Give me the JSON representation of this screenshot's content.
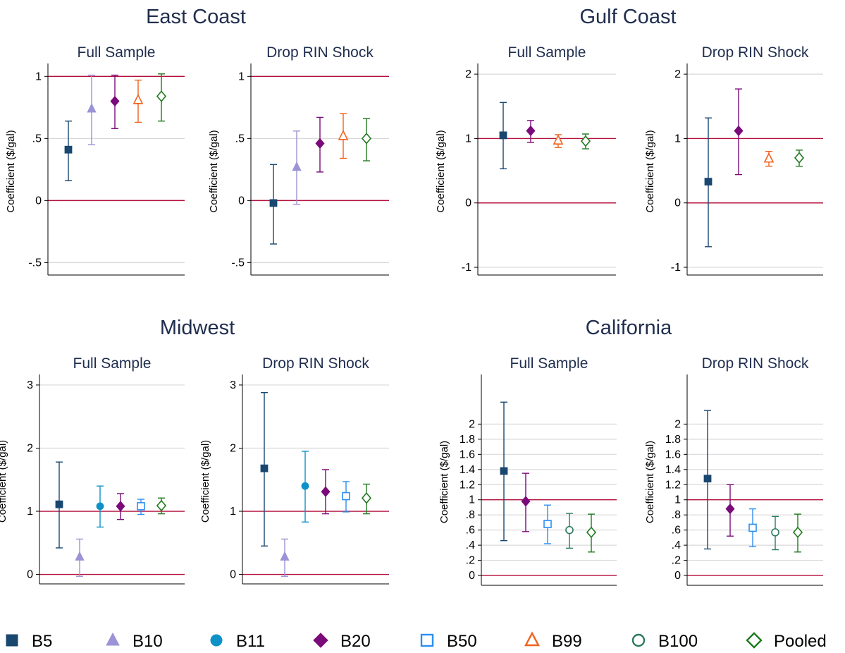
{
  "figure": {
    "y_axis_label": "Coefficient ($/gal)",
    "reference_color": "#b5113e",
    "grid_color": "#d9d9d9",
    "title_color": "#1f2d4e",
    "series_styles": {
      "B5": {
        "color": "#1a476f",
        "marker": "square-filled"
      },
      "B10": {
        "color": "#9b93d6",
        "marker": "triangle-filled"
      },
      "B11": {
        "color": "#0e91c7",
        "marker": "circle-filled"
      },
      "B20": {
        "color": "#7b0a7a",
        "marker": "diamond-filled"
      },
      "B50": {
        "color": "#2b8ff1",
        "marker": "square-hollow"
      },
      "B99": {
        "color": "#f0611d",
        "marker": "triangle-hollow"
      },
      "B100": {
        "color": "#2c7a5f",
        "marker": "circle-hollow"
      },
      "Pooled": {
        "color": "#1f7a1f",
        "marker": "diamond-hollow"
      }
    },
    "legend": [
      "B5",
      "B10",
      "B11",
      "B20",
      "B50",
      "B99",
      "B100",
      "Pooled"
    ]
  },
  "regions": [
    {
      "title": "East Coast"
    },
    {
      "title": "Gulf Coast"
    },
    {
      "title": "Midwest"
    },
    {
      "title": "California"
    }
  ],
  "chart_data": [
    {
      "type": "scatter",
      "region": "East Coast",
      "title": "Full Sample",
      "ylabel": "Coefficient ($/gal)",
      "ylim": [
        -0.6,
        1.07
      ],
      "yticks": [
        -0.5,
        0,
        0.5,
        1
      ],
      "ytick_labels": [
        "-.5",
        "0",
        ".5",
        "1"
      ],
      "reference_lines": [
        0,
        1
      ],
      "series": [
        {
          "name": "B5",
          "estimate": 0.41,
          "ci": [
            0.16,
            0.64
          ]
        },
        {
          "name": "B10",
          "estimate": 0.74,
          "ci": [
            0.45,
            1.01
          ]
        },
        {
          "name": "B20",
          "estimate": 0.8,
          "ci": [
            0.58,
            1.01
          ]
        },
        {
          "name": "B99",
          "estimate": 0.81,
          "ci": [
            0.63,
            0.97
          ]
        },
        {
          "name": "Pooled",
          "estimate": 0.84,
          "ci": [
            0.64,
            1.02
          ]
        }
      ]
    },
    {
      "type": "scatter",
      "region": "East Coast",
      "title": "Drop RIN Shock",
      "ylabel": "Coefficient ($/gal)",
      "ylim": [
        -0.6,
        1.07
      ],
      "yticks": [
        -0.5,
        0,
        0.5,
        1
      ],
      "ytick_labels": [
        "-.5",
        "0",
        ".5",
        "1"
      ],
      "reference_lines": [
        0,
        1
      ],
      "series": [
        {
          "name": "B5",
          "estimate": -0.02,
          "ci": [
            -0.35,
            0.29
          ]
        },
        {
          "name": "B10",
          "estimate": 0.27,
          "ci": [
            -0.03,
            0.56
          ]
        },
        {
          "name": "B20",
          "estimate": 0.46,
          "ci": [
            0.23,
            0.67
          ]
        },
        {
          "name": "B99",
          "estimate": 0.52,
          "ci": [
            0.34,
            0.7
          ]
        },
        {
          "name": "Pooled",
          "estimate": 0.5,
          "ci": [
            0.32,
            0.66
          ]
        }
      ]
    },
    {
      "type": "scatter",
      "region": "Gulf Coast",
      "title": "Full Sample",
      "ylabel": "Coefficient ($/gal)",
      "ylim": [
        -1.12,
        2.1
      ],
      "yticks": [
        -1,
        0,
        1,
        2
      ],
      "ytick_labels": [
        "-1",
        "0",
        "1",
        "2"
      ],
      "reference_lines": [
        0,
        1
      ],
      "series": [
        {
          "name": "B5",
          "estimate": 1.05,
          "ci": [
            0.53,
            1.56
          ]
        },
        {
          "name": "B20",
          "estimate": 1.12,
          "ci": [
            0.94,
            1.28
          ]
        },
        {
          "name": "B99",
          "estimate": 0.97,
          "ci": [
            0.86,
            1.06
          ]
        },
        {
          "name": "Pooled",
          "estimate": 0.96,
          "ci": [
            0.84,
            1.07
          ]
        }
      ]
    },
    {
      "type": "scatter",
      "region": "Gulf Coast",
      "title": "Drop RIN Shock",
      "ylabel": "Coefficient ($/gal)",
      "ylim": [
        -1.12,
        2.1
      ],
      "yticks": [
        -1,
        0,
        1,
        2
      ],
      "ytick_labels": [
        "-1",
        "0",
        "1",
        "2"
      ],
      "reference_lines": [
        0,
        1
      ],
      "series": [
        {
          "name": "B5",
          "estimate": 0.33,
          "ci": [
            -0.68,
            1.32
          ]
        },
        {
          "name": "B20",
          "estimate": 1.12,
          "ci": [
            0.44,
            1.77
          ]
        },
        {
          "name": "B99",
          "estimate": 0.69,
          "ci": [
            0.57,
            0.8
          ]
        },
        {
          "name": "Pooled",
          "estimate": 0.7,
          "ci": [
            0.57,
            0.82
          ]
        }
      ]
    },
    {
      "type": "scatter",
      "region": "Midwest",
      "title": "Full Sample",
      "ylabel": "Coefficient ($/gal)",
      "ylim": [
        -0.15,
        3.1
      ],
      "yticks": [
        0,
        1,
        2,
        3
      ],
      "ytick_labels": [
        "0",
        "1",
        "2",
        "3"
      ],
      "reference_lines": [
        0,
        1
      ],
      "series": [
        {
          "name": "B5",
          "estimate": 1.11,
          "ci": [
            0.42,
            1.78
          ]
        },
        {
          "name": "B10",
          "estimate": 0.28,
          "ci": [
            -0.03,
            0.56
          ]
        },
        {
          "name": "B11",
          "estimate": 1.08,
          "ci": [
            0.75,
            1.4
          ]
        },
        {
          "name": "B20",
          "estimate": 1.08,
          "ci": [
            0.87,
            1.28
          ]
        },
        {
          "name": "B50",
          "estimate": 1.08,
          "ci": [
            0.95,
            1.19
          ]
        },
        {
          "name": "Pooled",
          "estimate": 1.09,
          "ci": [
            0.96,
            1.21
          ]
        }
      ]
    },
    {
      "type": "scatter",
      "region": "Midwest",
      "title": "Drop RIN Shock",
      "ylabel": "Coefficient ($/gal)",
      "ylim": [
        -0.15,
        3.1
      ],
      "yticks": [
        0,
        1,
        2,
        3
      ],
      "ytick_labels": [
        "0",
        "1",
        "2",
        "3"
      ],
      "reference_lines": [
        0,
        1
      ],
      "series": [
        {
          "name": "B5",
          "estimate": 1.68,
          "ci": [
            0.45,
            2.88
          ]
        },
        {
          "name": "B10",
          "estimate": 0.28,
          "ci": [
            -0.03,
            0.56
          ]
        },
        {
          "name": "B11",
          "estimate": 1.4,
          "ci": [
            0.83,
            1.95
          ]
        },
        {
          "name": "B20",
          "estimate": 1.31,
          "ci": [
            0.96,
            1.66
          ]
        },
        {
          "name": "B50",
          "estimate": 1.24,
          "ci": [
            0.99,
            1.47
          ]
        },
        {
          "name": "Pooled",
          "estimate": 1.21,
          "ci": [
            0.96,
            1.43
          ]
        }
      ]
    },
    {
      "type": "scatter",
      "region": "California",
      "title": "Full Sample",
      "ylabel": "Coefficient ($/gal)",
      "ylim": [
        -0.13,
        2.6
      ],
      "yticks": [
        0,
        0.2,
        0.4,
        0.6,
        0.8,
        1,
        1.2,
        1.4,
        1.6,
        1.8,
        2
      ],
      "ytick_labels": [
        "0",
        ".2",
        ".4",
        ".6",
        ".8",
        "1",
        "1.2",
        "1.4",
        "1.6",
        "1.8",
        "2"
      ],
      "reference_lines": [
        0,
        1
      ],
      "series": [
        {
          "name": "B5",
          "estimate": 1.38,
          "ci": [
            0.46,
            2.29
          ]
        },
        {
          "name": "B20",
          "estimate": 0.98,
          "ci": [
            0.58,
            1.35
          ]
        },
        {
          "name": "B50",
          "estimate": 0.68,
          "ci": [
            0.42,
            0.93
          ]
        },
        {
          "name": "B100",
          "estimate": 0.6,
          "ci": [
            0.36,
            0.82
          ]
        },
        {
          "name": "Pooled",
          "estimate": 0.57,
          "ci": [
            0.31,
            0.81
          ]
        }
      ]
    },
    {
      "type": "scatter",
      "region": "California",
      "title": "Drop RIN Shock",
      "ylabel": "Coefficient ($/gal)",
      "ylim": [
        -0.13,
        2.6
      ],
      "yticks": [
        0,
        0.2,
        0.4,
        0.6,
        0.8,
        1,
        1.2,
        1.4,
        1.6,
        1.8,
        2
      ],
      "ytick_labels": [
        "0",
        ".2",
        ".4",
        ".6",
        ".8",
        "1",
        "1.2",
        "1.4",
        "1.6",
        "1.8",
        "2"
      ],
      "reference_lines": [
        0,
        1
      ],
      "series": [
        {
          "name": "B5",
          "estimate": 1.28,
          "ci": [
            0.35,
            2.18
          ]
        },
        {
          "name": "B20",
          "estimate": 0.88,
          "ci": [
            0.52,
            1.2
          ]
        },
        {
          "name": "B50",
          "estimate": 0.63,
          "ci": [
            0.38,
            0.88
          ]
        },
        {
          "name": "B100",
          "estimate": 0.57,
          "ci": [
            0.34,
            0.78
          ]
        },
        {
          "name": "Pooled",
          "estimate": 0.57,
          "ci": [
            0.31,
            0.81
          ]
        }
      ]
    }
  ]
}
